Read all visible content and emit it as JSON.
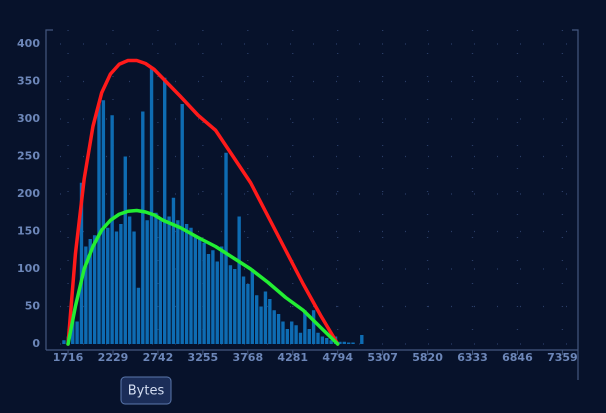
{
  "chart_data": {
    "type": "histogram",
    "xlabel": "Bytes",
    "bins": [
      1650,
      1700,
      1750,
      1800,
      1850,
      1900,
      1950,
      2000,
      2050,
      2100,
      2150,
      2200,
      2250,
      2300,
      2350,
      2400,
      2450,
      2500,
      2550,
      2600,
      2650,
      2700,
      2750,
      2800,
      2850,
      2900,
      2950,
      3000,
      3050,
      3100,
      3150,
      3200,
      3250,
      3300,
      3350,
      3400,
      3450,
      3500,
      3550,
      3600,
      3650,
      3700,
      3750,
      3800,
      3850,
      3900,
      3950,
      4000,
      4050,
      4100,
      4150,
      4200,
      4250,
      4300,
      4350,
      4400,
      4450,
      4500,
      4550,
      4600,
      4650,
      4700,
      4750,
      4800,
      4850,
      4900,
      4950,
      5000,
      5050,
      5100,
      5150
    ],
    "values": [
      5,
      10,
      40,
      30,
      215,
      130,
      140,
      145,
      320,
      325,
      155,
      305,
      150,
      160,
      250,
      170,
      150,
      75,
      310,
      165,
      370,
      175,
      165,
      355,
      170,
      195,
      165,
      320,
      160,
      155,
      145,
      140,
      135,
      120,
      125,
      110,
      130,
      255,
      105,
      100,
      170,
      90,
      80,
      100,
      65,
      50,
      70,
      60,
      45,
      40,
      30,
      20,
      30,
      25,
      15,
      45,
      20,
      45,
      15,
      10,
      8,
      5,
      10,
      3,
      3,
      2,
      2,
      0,
      12,
      0
    ],
    "color": "#0e6cb3",
    "curves": [
      {
        "color": "#ff1a1a",
        "x": [
          1716,
          1800,
          1900,
          2000,
          2100,
          2200,
          2300,
          2400,
          2500,
          2600,
          2700,
          2800,
          3000,
          3200,
          3400,
          3600,
          3800,
          4000,
          4200,
          4400,
          4600,
          4794
        ],
        "values": [
          0,
          120,
          220,
          290,
          335,
          360,
          373,
          378,
          378,
          374,
          366,
          354,
          330,
          305,
          285,
          250,
          215,
          170,
          125,
          80,
          38,
          0
        ]
      },
      {
        "color": "#22ee33",
        "x": [
          1716,
          1800,
          1900,
          2000,
          2100,
          2200,
          2300,
          2400,
          2500,
          2600,
          2700,
          2800,
          3000,
          3200,
          3400,
          3600,
          3800,
          4000,
          4200,
          4400,
          4600,
          4794
        ],
        "values": [
          0,
          50,
          100,
          130,
          152,
          165,
          173,
          177,
          178,
          176,
          172,
          165,
          155,
          142,
          130,
          115,
          100,
          82,
          62,
          45,
          22,
          0
        ]
      }
    ],
    "xlim": [
      1510,
      7560
    ],
    "ylim": [
      0,
      400
    ],
    "xticks": [
      1716,
      2229,
      2742,
      3255,
      3768,
      4281,
      4794,
      5307,
      5820,
      6333,
      6846,
      7359
    ],
    "yticks": [
      0,
      50,
      100,
      150,
      200,
      250,
      300,
      350,
      400
    ],
    "grid": true
  }
}
